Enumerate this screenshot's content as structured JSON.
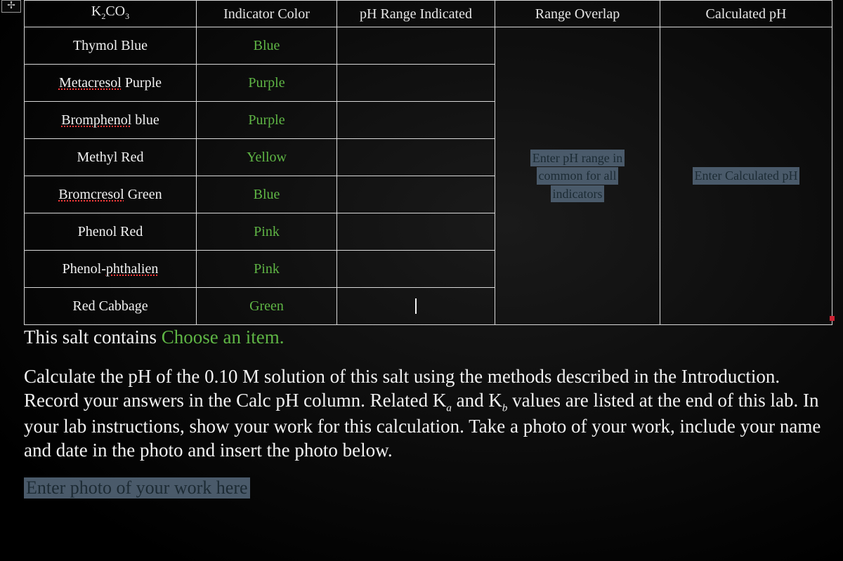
{
  "table": {
    "headers": {
      "c1": "K₂CO₃",
      "c2": "Indicator Color",
      "c3": "pH Range Indicated",
      "c4": "Range Overlap",
      "c5": "Calculated pH"
    },
    "rows": [
      {
        "name_plain": "Thymol Blue",
        "name_dotted": "",
        "tail": "",
        "color": "Blue"
      },
      {
        "name_plain": "",
        "name_dotted": "Metacresol",
        "tail": " Purple",
        "color": "Purple"
      },
      {
        "name_plain": "",
        "name_dotted": "Bromphenol",
        "tail": " blue",
        "color": "Purple"
      },
      {
        "name_plain": "Methyl Red",
        "name_dotted": "",
        "tail": "",
        "color": "Yellow"
      },
      {
        "name_plain": "",
        "name_dotted": "Bromcresol",
        "tail": " Green",
        "color": "Blue"
      },
      {
        "name_plain": "Phenol Red",
        "name_dotted": "",
        "tail": "",
        "color": "Pink"
      },
      {
        "name_plain": "Phenol-",
        "name_dotted": "phthalien",
        "tail": "",
        "color": "Pink"
      },
      {
        "name_plain": "Red Cabbage",
        "name_dotted": "",
        "tail": "",
        "color": "Green"
      }
    ],
    "overlap_placeholder_l1": "Enter pH range in",
    "overlap_placeholder_l2": "common for all",
    "overlap_placeholder_l3": "indicators",
    "calc_placeholder": "Enter Calculated pH"
  },
  "below": {
    "prefix": "This salt contains ",
    "choose": "Choose an item."
  },
  "instructions": "Calculate the pH of the 0.10 M solution of this salt using the methods described in the Introduction.  Record your answers in the Calc pH column.  Related K",
  "instructions_tail": " values are listed at the end of this lab. In your lab instructions, show your work for this calculation.  Take a photo of your work, include your name and date in the photo and insert the photo below.",
  "k_a": "a",
  "k_and": " and K",
  "k_b": "b",
  "photo_placeholder": "Enter photo of your work here",
  "colors": {
    "page_bg": "#0a0a0a",
    "border": "#d9d9d9",
    "text": "#f2f2f2",
    "green": "#5fb545",
    "placeholder_bg": "#4a5a6a",
    "placeholder_fg": "#1c2a33",
    "dotted": "#ff3b3b"
  }
}
